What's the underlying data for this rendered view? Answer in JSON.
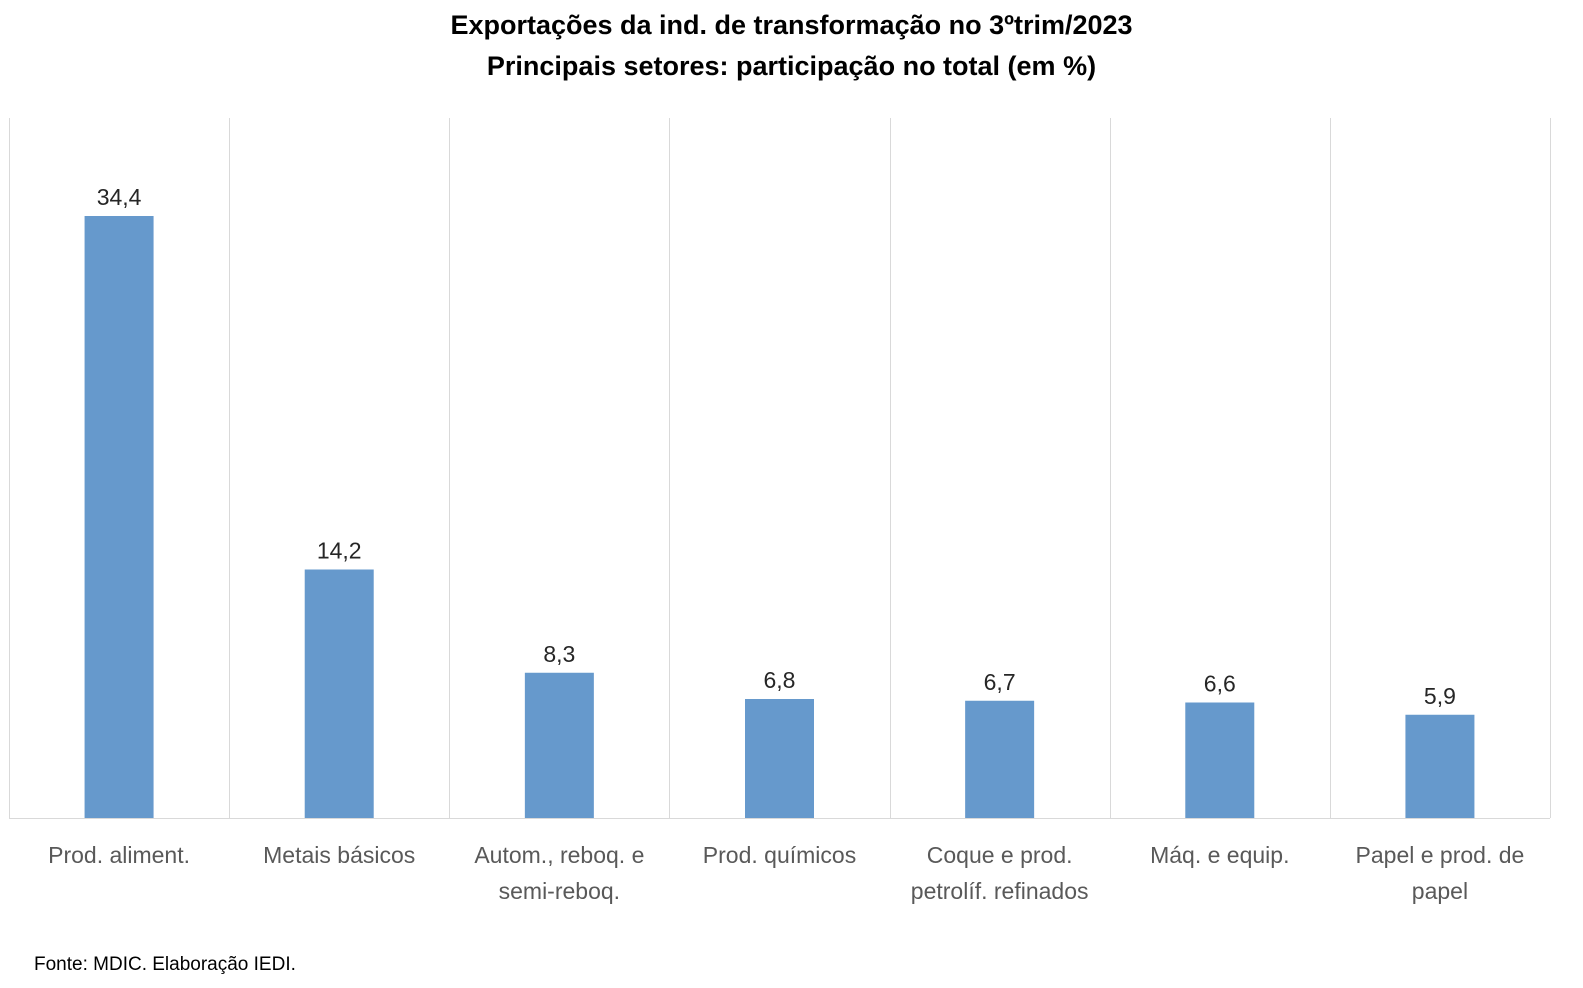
{
  "chart_data": {
    "type": "bar",
    "title": "Exportações da ind. de transformação no 3ºtrim/2023",
    "subtitle": "Principais setores: participação no total (em %)",
    "categories": [
      [
        "Prod. aliment."
      ],
      [
        "Metais básicos"
      ],
      [
        "Autom., reboq. e",
        "semi-reboq."
      ],
      [
        "Prod. químicos"
      ],
      [
        "Coque e prod.",
        "petrolíf. refinados"
      ],
      [
        "Máq. e equip."
      ],
      [
        "Papel e prod. de",
        "papel"
      ]
    ],
    "values": [
      34.4,
      14.2,
      8.3,
      6.8,
      6.7,
      6.6,
      5.9
    ],
    "data_labels": [
      "34,4",
      "14,2",
      "8,3",
      "6,8",
      "6,7",
      "6,6",
      "5,9"
    ],
    "ylim": [
      0,
      40
    ],
    "bar_color": "#6699CC",
    "grid": "vertical category separators",
    "legend": "none"
  },
  "source": "Fonte: MDIC. Elaboração IEDI."
}
